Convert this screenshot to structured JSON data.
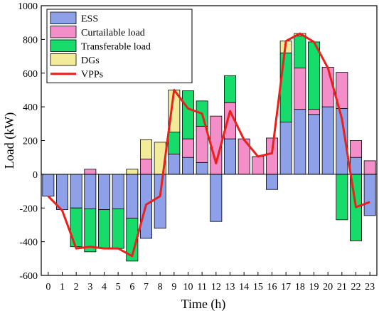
{
  "chart_data": {
    "type": "bar",
    "stacked": true,
    "xlabel": "Time (h)",
    "ylabel": "Load (kW)",
    "ylim": [
      -600,
      1000
    ],
    "yticks": [
      -600,
      -400,
      -200,
      0,
      200,
      400,
      600,
      800,
      1000
    ],
    "categories": [
      "0",
      "1",
      "2",
      "3",
      "4",
      "5",
      "6",
      "7",
      "8",
      "9",
      "10",
      "11",
      "12",
      "13",
      "14",
      "15",
      "16",
      "17",
      "18",
      "19",
      "20",
      "21",
      "22",
      "23"
    ],
    "legend_position": "top-left",
    "series": [
      {
        "name": "ESS",
        "color": "#8ea0e8",
        "values": [
          -130,
          -210,
          -200,
          -205,
          -210,
          -205,
          -260,
          -380,
          -320,
          120,
          100,
          70,
          -280,
          210,
          0,
          0,
          -90,
          310,
          385,
          355,
          400,
          390,
          100,
          -245
        ]
      },
      {
        "name": "Curtailable load",
        "color": "#f38ec8",
        "values": [
          0,
          0,
          0,
          30,
          0,
          0,
          0,
          90,
          0,
          0,
          110,
          215,
          345,
          215,
          210,
          105,
          215,
          0,
          245,
          30,
          235,
          215,
          100,
          80
        ]
      },
      {
        "name": "Transferable load",
        "color": "#17dc6b",
        "values": [
          0,
          0,
          -230,
          -255,
          -230,
          -235,
          -255,
          0,
          0,
          130,
          285,
          150,
          0,
          160,
          0,
          0,
          0,
          410,
          190,
          400,
          0,
          -270,
          -395,
          0
        ]
      },
      {
        "name": "DGs",
        "color": "#f2ec9a",
        "values": [
          0,
          0,
          0,
          0,
          0,
          0,
          30,
          115,
          190,
          250,
          0,
          0,
          0,
          0,
          0,
          0,
          0,
          70,
          15,
          0,
          0,
          0,
          0,
          0
        ]
      }
    ],
    "line_series": {
      "name": "VPPs",
      "color": "#e8211b",
      "values": [
        -130,
        -215,
        -440,
        -430,
        -440,
        -440,
        -485,
        -180,
        -130,
        500,
        390,
        360,
        65,
        375,
        205,
        105,
        125,
        790,
        835,
        785,
        630,
        330,
        -195,
        -165
      ]
    }
  }
}
